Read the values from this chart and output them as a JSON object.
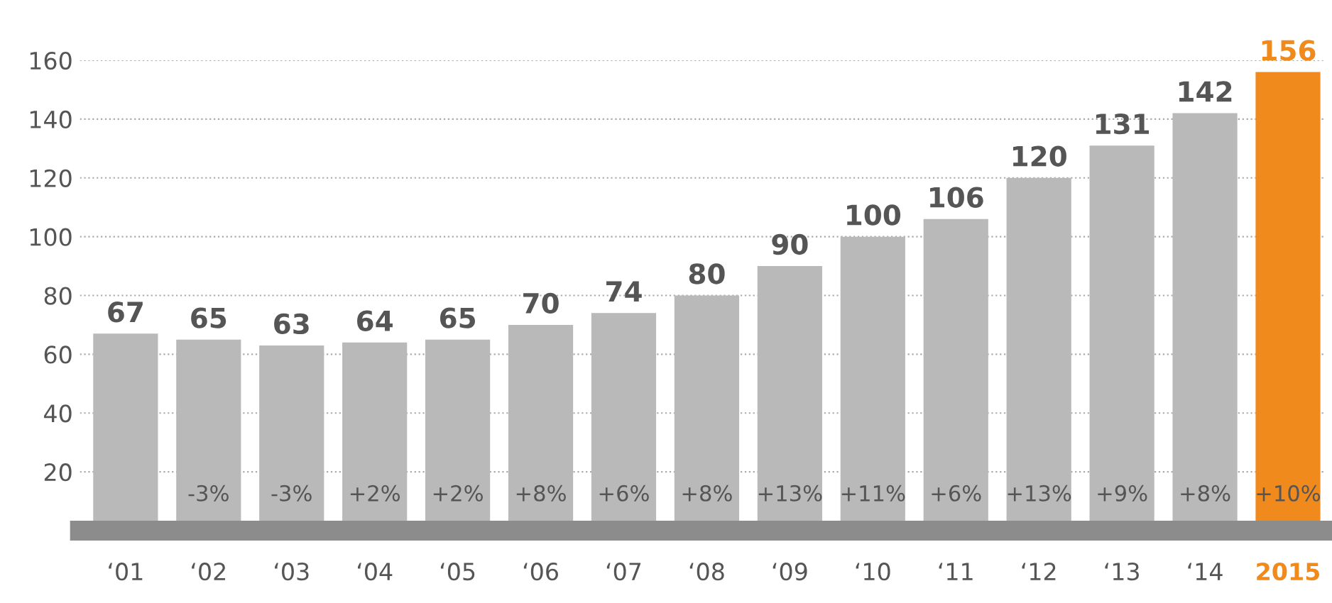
{
  "chart_data": {
    "type": "bar",
    "categories": [
      "‘01",
      "‘02",
      "‘03",
      "‘04",
      "‘05",
      "‘06",
      "‘07",
      "‘08",
      "‘09",
      "‘10",
      "‘11",
      "‘12",
      "‘13",
      "‘14",
      "2015"
    ],
    "values": [
      67,
      65,
      63,
      64,
      65,
      70,
      74,
      80,
      90,
      100,
      106,
      120,
      131,
      142,
      156
    ],
    "colors": [
      "#b9b9b9",
      "#b9b9b9",
      "#b9b9b9",
      "#b9b9b9",
      "#b9b9b9",
      "#b9b9b9",
      "#b9b9b9",
      "#b9b9b9",
      "#b9b9b9",
      "#b9b9b9",
      "#b9b9b9",
      "#b9b9b9",
      "#b9b9b9",
      "#b9b9b9",
      "#f08a1c"
    ],
    "data_labels": true,
    "ylim": [
      0,
      160
    ],
    "yticks": [
      20,
      40,
      60,
      80,
      100,
      120,
      140,
      160
    ],
    "grid": "y",
    "annotations": [
      "-3%",
      "-3%",
      "+2%",
      "+2%",
      "+8%",
      "+6%",
      "+8%",
      "+13%",
      "+11%",
      "+6%",
      "+13%",
      "+9%",
      "+8%",
      "+10%"
    ]
  }
}
